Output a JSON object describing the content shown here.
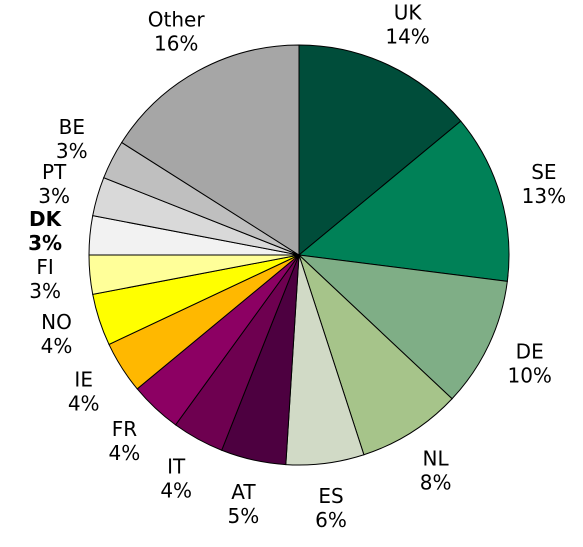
{
  "chart_data": {
    "type": "pie",
    "title": "",
    "slices": [
      {
        "label": "UK",
        "value": 14,
        "value_label": "14%",
        "color": "#004D3A"
      },
      {
        "label": "SE",
        "value": 13,
        "value_label": "13%",
        "color": "#008157"
      },
      {
        "label": "DE",
        "value": 10,
        "value_label": "10%",
        "color": "#7FAE86"
      },
      {
        "label": "NL",
        "value": 8,
        "value_label": "8%",
        "color": "#A6C48A"
      },
      {
        "label": "ES",
        "value": 6,
        "value_label": "6%",
        "color": "#D1DAC6"
      },
      {
        "label": "AT",
        "value": 5,
        "value_label": "5%",
        "color": "#4D0040"
      },
      {
        "label": "IT",
        "value": 4,
        "value_label": "4%",
        "color": "#6E0050"
      },
      {
        "label": "FR",
        "value": 4,
        "value_label": "4%",
        "color": "#8C0063"
      },
      {
        "label": "IE",
        "value": 4,
        "value_label": "4%",
        "color": "#FFB800"
      },
      {
        "label": "NO",
        "value": 4,
        "value_label": "4%",
        "color": "#FFFF00"
      },
      {
        "label": "FI",
        "value": 3,
        "value_label": "3%",
        "color": "#FFFF99"
      },
      {
        "label": "DK",
        "value": 3,
        "value_label": "3%",
        "color": "#F2F2F2",
        "emphasis": true
      },
      {
        "label": "PT",
        "value": 3,
        "value_label": "3%",
        "color": "#D9D9D9"
      },
      {
        "label": "BE",
        "value": 3,
        "value_label": "3%",
        "color": "#BFBFBF"
      },
      {
        "label": "Other",
        "value": 16,
        "value_label": "16%",
        "color": "#A6A6A6"
      }
    ]
  }
}
